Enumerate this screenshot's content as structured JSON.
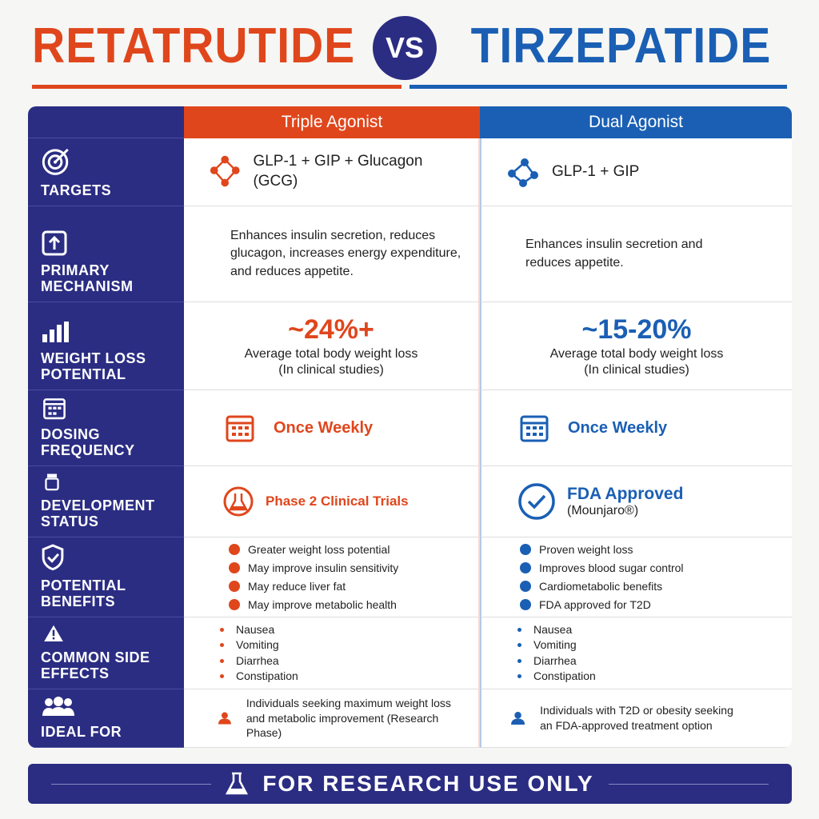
{
  "header": {
    "left": "RETATRUTIDE",
    "vs": "VS",
    "right": "TIRZEPATIDE"
  },
  "columns": {
    "left": "Triple Agonist",
    "right": "Dual Agonist"
  },
  "rows": [
    {
      "label": "TARGETS",
      "left": {
        "text": "GLP-1 + GIP + Glucagon (GCG)"
      },
      "right": {
        "text": "GLP-1 + GIP"
      }
    },
    {
      "label": "PRIMARY MECHANISM",
      "left": {
        "text": "Enhances insulin secretion, reduces glucagon, increases energy expenditure, and reduces appetite."
      },
      "right": {
        "text": "Enhances insulin secretion and reduces appetite."
      }
    },
    {
      "label": "WEIGHT LOSS POTENTIAL",
      "left": {
        "value": "~24%+",
        "text": "Average total body weight loss",
        "note": "(In clinical studies)"
      },
      "right": {
        "value": "~15-20%",
        "text": "Average total body weight loss",
        "note": "(In clinical studies)"
      }
    },
    {
      "label": "DOSING FREQUENCY",
      "left": {
        "text": "Once Weekly"
      },
      "right": {
        "text": "Once Weekly"
      }
    },
    {
      "label": "DEVELOPMENT STATUS",
      "left": {
        "text": "Phase 2 Clinical Trials"
      },
      "right": {
        "text": "FDA Approved",
        "note": "(Mounjaro®)"
      }
    },
    {
      "label": "POTENTIAL BENEFITS",
      "left": {
        "items": [
          "Greater weight loss potential",
          "May improve insulin sensitivity",
          "May reduce liver fat",
          "May improve metabolic health"
        ]
      },
      "right": {
        "items": [
          "Proven weight loss",
          "Improves blood sugar control",
          "Cardiometabolic benefits",
          "FDA approved for T2D"
        ]
      }
    },
    {
      "label": "COMMON SIDE EFFECTS",
      "left": {
        "items": [
          "Nausea",
          "Vomiting",
          "Diarrhea",
          "Constipation"
        ]
      },
      "right": {
        "items": [
          "Nausea",
          "Vomiting",
          "Diarrhea",
          "Constipation"
        ]
      }
    },
    {
      "label": "IDEAL FOR",
      "left": {
        "text": "Individuals seeking maximum weight loss and metabolic improvement (Research Phase)"
      },
      "right": {
        "text": "Individuals with T2D or obesity seeking an FDA-approved treatment option"
      }
    }
  ],
  "footer": "FOR RESEARCH USE ONLY"
}
